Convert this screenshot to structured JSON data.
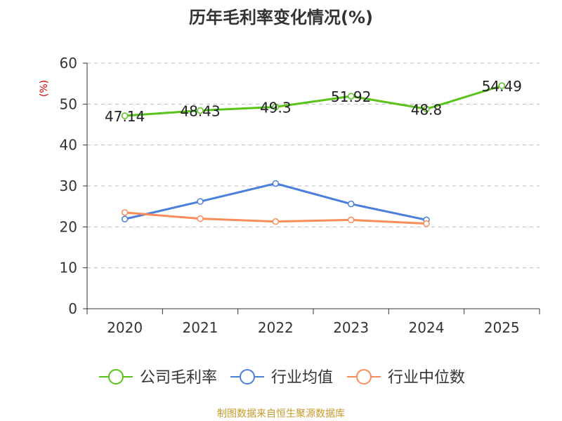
{
  "chart_data": {
    "type": "line",
    "title": "历年毛利率变化情况(%)",
    "ylabel": "(%)",
    "xlabel": "",
    "categories": [
      "2020",
      "2021",
      "2022",
      "2023",
      "2024",
      "2025"
    ],
    "ylim": [
      0,
      60
    ],
    "yticks": [
      0,
      10,
      20,
      30,
      40,
      50,
      60
    ],
    "grid": true,
    "legend_position": "bottom",
    "series": [
      {
        "name": "公司毛利率",
        "color": "#5ac31a",
        "values": [
          47.14,
          48.43,
          49.3,
          51.92,
          48.8,
          54.49
        ],
        "labels": [
          "47.14",
          "48.43",
          "49.3",
          "51.92",
          "48.8",
          "54.49"
        ]
      },
      {
        "name": "行业均值",
        "color": "#4a7fdc",
        "values": [
          21.9,
          26.2,
          30.6,
          25.6,
          21.7,
          null
        ]
      },
      {
        "name": "行业中位数",
        "color": "#fa8c5a",
        "values": [
          23.5,
          22.0,
          21.3,
          21.7,
          20.8,
          null
        ]
      }
    ]
  },
  "footer": {
    "source": "制图数据来自恒生聚源数据库"
  }
}
